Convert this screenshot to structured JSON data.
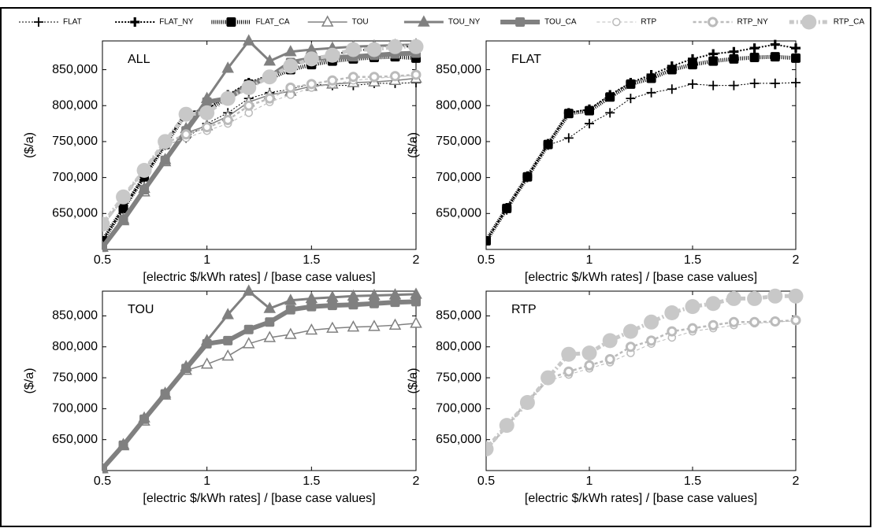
{
  "chart_data": [
    {
      "type": "line",
      "title": "ALL",
      "xlabel": "[electric $/kWh rates] / [base case values]",
      "ylabel": "($/a)",
      "x": [
        0.5,
        0.6,
        0.7,
        0.8,
        0.9,
        1.0,
        1.1,
        1.2,
        1.3,
        1.4,
        1.5,
        1.6,
        1.7,
        1.8,
        1.9,
        2.0
      ],
      "xlim": [
        0.5,
        2
      ],
      "xticks": [
        0.5,
        1,
        1.5,
        2
      ],
      "ylim": [
        600000,
        890000
      ],
      "yticks": [
        {
          "value": 650000,
          "label": "650,000"
        },
        {
          "value": 700000,
          "label": "700,000"
        },
        {
          "value": 750000,
          "label": "750,000"
        },
        {
          "value": 800000,
          "label": "800,000"
        },
        {
          "value": 850000,
          "label": "850,000"
        }
      ],
      "legend": "top",
      "series": [
        {
          "name": "FLAT",
          "color": "#000000",
          "width": 1,
          "dash": "2,2",
          "marker": "plus",
          "values": [
            612000,
            655000,
            700000,
            745000,
            755000,
            775000,
            790000,
            810000,
            818000,
            823000,
            830000,
            828000,
            828000,
            831000,
            831000,
            832000
          ]
        },
        {
          "name": "FLAT_NY",
          "color": "#000000",
          "width": 2,
          "dash": "2,2",
          "marker": "plus-bold",
          "values": [
            612000,
            658000,
            702000,
            747000,
            790000,
            795000,
            815000,
            832000,
            843000,
            855000,
            865000,
            872000,
            875000,
            880000,
            885000,
            880000
          ]
        },
        {
          "name": "FLAT_CA",
          "color": "#000000",
          "width": 5,
          "dash": "1,1.5",
          "marker": "square",
          "values": [
            612000,
            657000,
            701000,
            746000,
            789000,
            793000,
            812000,
            830000,
            838000,
            850000,
            857000,
            862000,
            865000,
            867000,
            868000,
            866000
          ]
        },
        {
          "name": "TOU",
          "color": "#808080",
          "width": 1.5,
          "dash": "",
          "marker": "triangle-open",
          "values": [
            603000,
            640000,
            680000,
            722000,
            762000,
            772000,
            785000,
            805000,
            815000,
            820000,
            827000,
            830000,
            832000,
            833000,
            835000,
            838000
          ]
        },
        {
          "name": "TOU_NY",
          "color": "#808080",
          "width": 3,
          "dash": "",
          "marker": "triangle",
          "values": [
            603000,
            642000,
            685000,
            725000,
            768000,
            810000,
            852000,
            890000,
            862000,
            875000,
            878000,
            880000,
            882000,
            883000,
            884000,
            885000
          ]
        },
        {
          "name": "TOU_CA",
          "color": "#808080",
          "width": 6,
          "dash": "",
          "marker": "square",
          "values": [
            603000,
            641000,
            683000,
            724000,
            765000,
            805000,
            810000,
            828000,
            840000,
            860000,
            865000,
            867000,
            868000,
            870000,
            872000,
            873000
          ]
        },
        {
          "name": "RTP",
          "color": "#bbbbbb",
          "width": 1,
          "dash": "4,3",
          "marker": "circle-open",
          "values": [
            632000,
            670000,
            710000,
            745000,
            755000,
            765000,
            775000,
            790000,
            805000,
            815000,
            825000,
            830000,
            835000,
            838000,
            840000,
            842000
          ]
        },
        {
          "name": "RTP_NY",
          "color": "#bbbbbb",
          "width": 2.5,
          "dash": "4,3",
          "marker": "circle-dot",
          "values": [
            633000,
            672000,
            712000,
            748000,
            760000,
            770000,
            780000,
            800000,
            810000,
            825000,
            830000,
            835000,
            840000,
            840000,
            841000,
            843000
          ]
        },
        {
          "name": "RTP_CA",
          "color": "#c8c8c8",
          "width": 5,
          "dash": "6,3,2,3",
          "marker": "circle-big",
          "values": [
            635000,
            673000,
            710000,
            750000,
            788000,
            790000,
            810000,
            825000,
            840000,
            855000,
            865000,
            870000,
            878000,
            878000,
            882000,
            882000
          ]
        }
      ]
    },
    {
      "type": "line",
      "title": "FLAT",
      "xlabel": "[electric $/kWh rates] / [base case values]",
      "ylabel": "($/a)",
      "x": [
        0.5,
        0.6,
        0.7,
        0.8,
        0.9,
        1.0,
        1.1,
        1.2,
        1.3,
        1.4,
        1.5,
        1.6,
        1.7,
        1.8,
        1.9,
        2.0
      ],
      "xlim": [
        0.5,
        2
      ],
      "xticks": [
        0.5,
        1,
        1.5,
        2
      ],
      "ylim": [
        600000,
        890000
      ],
      "yticks": [
        {
          "value": 650000,
          "label": "650,000"
        },
        {
          "value": 700000,
          "label": "700,000"
        },
        {
          "value": 750000,
          "label": "750,000"
        },
        {
          "value": 800000,
          "label": "800,000"
        },
        {
          "value": 850000,
          "label": "850,000"
        }
      ],
      "series": [
        {
          "color": "#000000",
          "width": 1,
          "dash": "2,2",
          "marker": "plus",
          "values": [
            612000,
            655000,
            700000,
            745000,
            755000,
            775000,
            790000,
            810000,
            818000,
            823000,
            830000,
            828000,
            828000,
            831000,
            831000,
            832000
          ]
        },
        {
          "color": "#000000",
          "width": 2,
          "dash": "2,2",
          "marker": "plus-bold",
          "values": [
            612000,
            658000,
            702000,
            747000,
            790000,
            795000,
            815000,
            832000,
            843000,
            855000,
            865000,
            872000,
            875000,
            880000,
            885000,
            880000
          ]
        },
        {
          "color": "#000000",
          "width": 5,
          "dash": "1,1.5",
          "marker": "square",
          "values": [
            612000,
            657000,
            701000,
            746000,
            789000,
            793000,
            812000,
            830000,
            838000,
            850000,
            857000,
            862000,
            865000,
            867000,
            868000,
            866000
          ]
        }
      ]
    },
    {
      "type": "line",
      "title": "TOU",
      "xlabel": "[electric $/kWh rates] / [base case values]",
      "ylabel": "($/a)",
      "x": [
        0.5,
        0.6,
        0.7,
        0.8,
        0.9,
        1.0,
        1.1,
        1.2,
        1.3,
        1.4,
        1.5,
        1.6,
        1.7,
        1.8,
        1.9,
        2.0
      ],
      "xlim": [
        0.5,
        2
      ],
      "xticks": [
        0.5,
        1,
        1.5,
        2
      ],
      "ylim": [
        600000,
        890000
      ],
      "yticks": [
        {
          "value": 650000,
          "label": "650,000"
        },
        {
          "value": 700000,
          "label": "700,000"
        },
        {
          "value": 750000,
          "label": "750,000"
        },
        {
          "value": 800000,
          "label": "800,000"
        },
        {
          "value": 850000,
          "label": "850,000"
        }
      ],
      "series": [
        {
          "color": "#808080",
          "width": 1.5,
          "dash": "",
          "marker": "triangle-open",
          "values": [
            603000,
            640000,
            680000,
            722000,
            762000,
            772000,
            785000,
            805000,
            815000,
            820000,
            827000,
            830000,
            832000,
            833000,
            835000,
            838000
          ]
        },
        {
          "color": "#808080",
          "width": 3,
          "dash": "",
          "marker": "triangle",
          "values": [
            603000,
            642000,
            685000,
            725000,
            768000,
            810000,
            852000,
            890000,
            862000,
            875000,
            878000,
            880000,
            882000,
            883000,
            884000,
            885000
          ]
        },
        {
          "color": "#808080",
          "width": 6,
          "dash": "",
          "marker": "square",
          "values": [
            603000,
            641000,
            683000,
            724000,
            765000,
            805000,
            810000,
            828000,
            840000,
            860000,
            865000,
            867000,
            868000,
            870000,
            872000,
            873000
          ]
        }
      ]
    },
    {
      "type": "line",
      "title": "RTP",
      "xlabel": "[electric $/kWh rates] / [base case values]",
      "ylabel": "($/a)",
      "x": [
        0.5,
        0.6,
        0.7,
        0.8,
        0.9,
        1.0,
        1.1,
        1.2,
        1.3,
        1.4,
        1.5,
        1.6,
        1.7,
        1.8,
        1.9,
        2.0
      ],
      "xlim": [
        0.5,
        2
      ],
      "xticks": [
        0.5,
        1,
        1.5,
        2
      ],
      "ylim": [
        600000,
        890000
      ],
      "yticks": [
        {
          "value": 650000,
          "label": "650,000"
        },
        {
          "value": 700000,
          "label": "700,000"
        },
        {
          "value": 750000,
          "label": "750,000"
        },
        {
          "value": 800000,
          "label": "800,000"
        },
        {
          "value": 850000,
          "label": "850,000"
        }
      ],
      "series": [
        {
          "color": "#bbbbbb",
          "width": 1,
          "dash": "4,3",
          "marker": "circle-open",
          "values": [
            632000,
            670000,
            710000,
            745000,
            755000,
            765000,
            775000,
            790000,
            805000,
            815000,
            825000,
            830000,
            835000,
            838000,
            840000,
            842000
          ]
        },
        {
          "color": "#bbbbbb",
          "width": 2.5,
          "dash": "4,3",
          "marker": "circle-dot",
          "values": [
            633000,
            672000,
            712000,
            748000,
            760000,
            770000,
            780000,
            800000,
            810000,
            825000,
            830000,
            835000,
            840000,
            840000,
            841000,
            843000
          ]
        },
        {
          "color": "#c8c8c8",
          "width": 5,
          "dash": "6,3,2,3",
          "marker": "circle-big",
          "values": [
            635000,
            673000,
            710000,
            750000,
            788000,
            790000,
            810000,
            825000,
            840000,
            855000,
            865000,
            870000,
            878000,
            878000,
            882000,
            882000
          ]
        }
      ]
    }
  ]
}
